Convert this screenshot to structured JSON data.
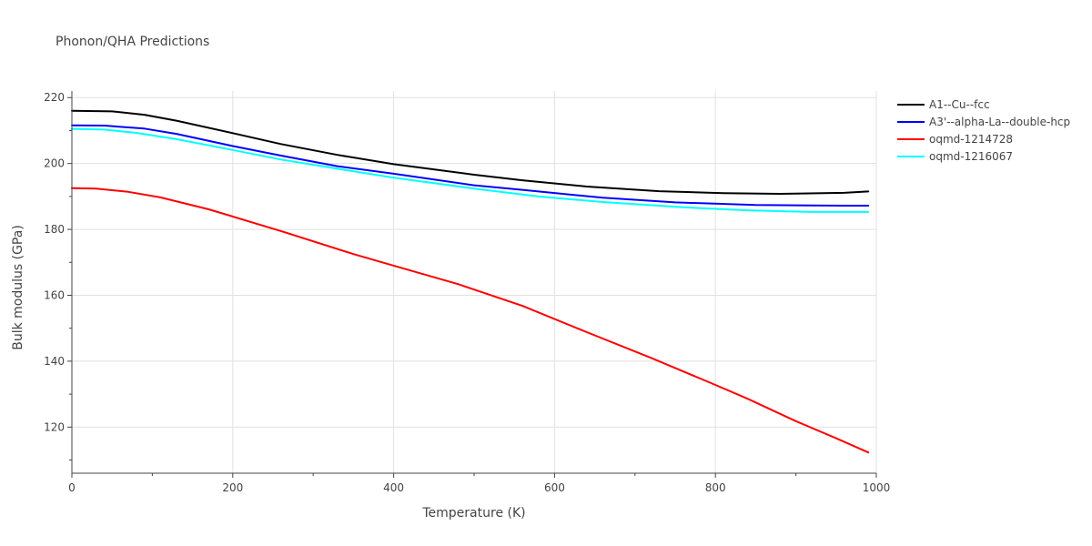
{
  "chart_data": {
    "type": "line",
    "title": "Phonon/QHA Predictions",
    "xlabel": "Temperature (K)",
    "ylabel": "Bulk modulus (GPa)",
    "xlim": [
      0,
      1000
    ],
    "ylim": [
      106,
      222
    ],
    "xticks": [
      0,
      200,
      400,
      600,
      800,
      1000
    ],
    "yticks": [
      120,
      140,
      160,
      180,
      200,
      220
    ],
    "grid": true,
    "legend_position": "top-right",
    "series": [
      {
        "name": "A1--Cu--fcc",
        "color": "#000000",
        "x": [
          0,
          50,
          90,
          130,
          200,
          260,
          330,
          400,
          500,
          560,
          640,
          730,
          810,
          880,
          960,
          990
        ],
        "y": [
          216,
          215.8,
          214.8,
          213,
          209.2,
          205.9,
          202.6,
          199.8,
          196.6,
          194.9,
          193,
          191.6,
          191,
          190.8,
          191.1,
          191.5
        ]
      },
      {
        "name": "A3'--alpha-La--double-hcp",
        "color": "#0000ff",
        "x": [
          0,
          40,
          90,
          130,
          200,
          260,
          330,
          400,
          500,
          560,
          660,
          750,
          850,
          960,
          990
        ],
        "y": [
          211.6,
          211.5,
          210.6,
          209,
          205.3,
          202.4,
          199.2,
          196.9,
          193.4,
          192,
          189.6,
          188.2,
          187.4,
          187.2,
          187.2
        ]
      },
      {
        "name": "oqmd-1214728",
        "color": "#ff0000",
        "x": [
          0,
          30,
          70,
          110,
          170,
          260,
          350,
          400,
          480,
          560,
          640,
          720,
          800,
          840,
          900,
          950,
          990
        ],
        "y": [
          192.5,
          192.4,
          191.4,
          189.7,
          186.1,
          179.5,
          172.5,
          169,
          163.4,
          156.8,
          148.8,
          141,
          132.8,
          128.6,
          121.8,
          116.6,
          112.3
        ]
      },
      {
        "name": "oqmd-1216067",
        "color": "#00ffff",
        "x": [
          0,
          40,
          80,
          130,
          200,
          260,
          330,
          400,
          500,
          580,
          660,
          760,
          840,
          920,
          990
        ],
        "y": [
          210.5,
          210.3,
          209.3,
          207.4,
          204.1,
          201.2,
          198.4,
          195.7,
          192.4,
          190,
          188.3,
          186.7,
          185.8,
          185.3,
          185.3
        ]
      }
    ]
  }
}
